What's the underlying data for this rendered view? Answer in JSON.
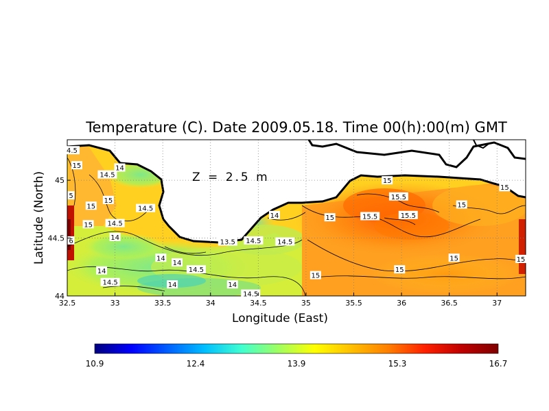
{
  "chart_data": {
    "type": "heatmap",
    "title": "Temperature (C). Date 2009.05.18. Time 00(h):00(m) GMT",
    "annotation": "Z = 2.5 m",
    "xlabel": "Longitude (East)",
    "ylabel": "Latitude (North)",
    "xlim": [
      32.5,
      37.3
    ],
    "ylim": [
      44.0,
      45.35
    ],
    "xticks": [
      "32.5",
      "33",
      "33.5",
      "34",
      "34.5",
      "35",
      "35.5",
      "36",
      "36.5",
      "37"
    ],
    "yticks": [
      "44",
      "44.5",
      "45"
    ],
    "grid": "dotted",
    "colorbar": {
      "min": 10.9,
      "max": 16.7,
      "ticks": [
        "10.9",
        "12.4",
        "13.9",
        "15.3",
        "16.7"
      ],
      "colors": [
        "#00007f",
        "#0000ff",
        "#0060ff",
        "#00bfff",
        "#40ffd0",
        "#9fff60",
        "#ffff00",
        "#ffbf00",
        "#ff7f00",
        "#ff2000",
        "#bf0000",
        "#7f0000"
      ]
    },
    "contour_labels": [
      {
        "text": "4.5",
        "lon": 32.55,
        "lat": 45.26
      },
      {
        "text": "15",
        "lon": 32.6,
        "lat": 45.13
      },
      {
        "text": "14",
        "lon": 33.05,
        "lat": 45.11
      },
      {
        "text": "14.5",
        "lon": 32.92,
        "lat": 45.05
      },
      {
        "text": "5",
        "lon": 32.54,
        "lat": 44.87
      },
      {
        "text": "15",
        "lon": 32.93,
        "lat": 44.83
      },
      {
        "text": "15",
        "lon": 32.75,
        "lat": 44.78
      },
      {
        "text": "14.5",
        "lon": 33.32,
        "lat": 44.76
      },
      {
        "text": "14.5",
        "lon": 33.0,
        "lat": 44.63
      },
      {
        "text": "15",
        "lon": 32.72,
        "lat": 44.62
      },
      {
        "text": "14",
        "lon": 33.0,
        "lat": 44.51
      },
      {
        "text": "6",
        "lon": 32.54,
        "lat": 44.48
      },
      {
        "text": "14",
        "lon": 33.48,
        "lat": 44.33
      },
      {
        "text": "14",
        "lon": 33.65,
        "lat": 44.29
      },
      {
        "text": "14.5",
        "lon": 33.85,
        "lat": 44.23
      },
      {
        "text": "14",
        "lon": 32.86,
        "lat": 44.22
      },
      {
        "text": "14.5",
        "lon": 32.95,
        "lat": 44.12
      },
      {
        "text": "14",
        "lon": 33.6,
        "lat": 44.1
      },
      {
        "text": "14",
        "lon": 34.23,
        "lat": 44.1
      },
      {
        "text": "14.5",
        "lon": 34.42,
        "lat": 44.02
      },
      {
        "text": "13.5",
        "lon": 34.18,
        "lat": 44.47
      },
      {
        "text": "14.5",
        "lon": 34.45,
        "lat": 44.48
      },
      {
        "text": "14.5",
        "lon": 34.78,
        "lat": 44.47
      },
      {
        "text": "14",
        "lon": 34.67,
        "lat": 44.7
      },
      {
        "text": "15",
        "lon": 35.25,
        "lat": 44.68
      },
      {
        "text": "15.5",
        "lon": 35.67,
        "lat": 44.69
      },
      {
        "text": "15.5",
        "lon": 35.97,
        "lat": 44.86
      },
      {
        "text": "15.5",
        "lon": 36.07,
        "lat": 44.7
      },
      {
        "text": "15",
        "lon": 35.85,
        "lat": 45.0
      },
      {
        "text": "15",
        "lon": 35.1,
        "lat": 44.18
      },
      {
        "text": "15",
        "lon": 35.98,
        "lat": 44.23
      },
      {
        "text": "15",
        "lon": 36.63,
        "lat": 44.79
      },
      {
        "text": "15",
        "lon": 37.08,
        "lat": 44.94
      },
      {
        "text": "15",
        "lon": 36.55,
        "lat": 44.33
      },
      {
        "text": "15",
        "lon": 37.25,
        "lat": 44.32
      }
    ]
  }
}
